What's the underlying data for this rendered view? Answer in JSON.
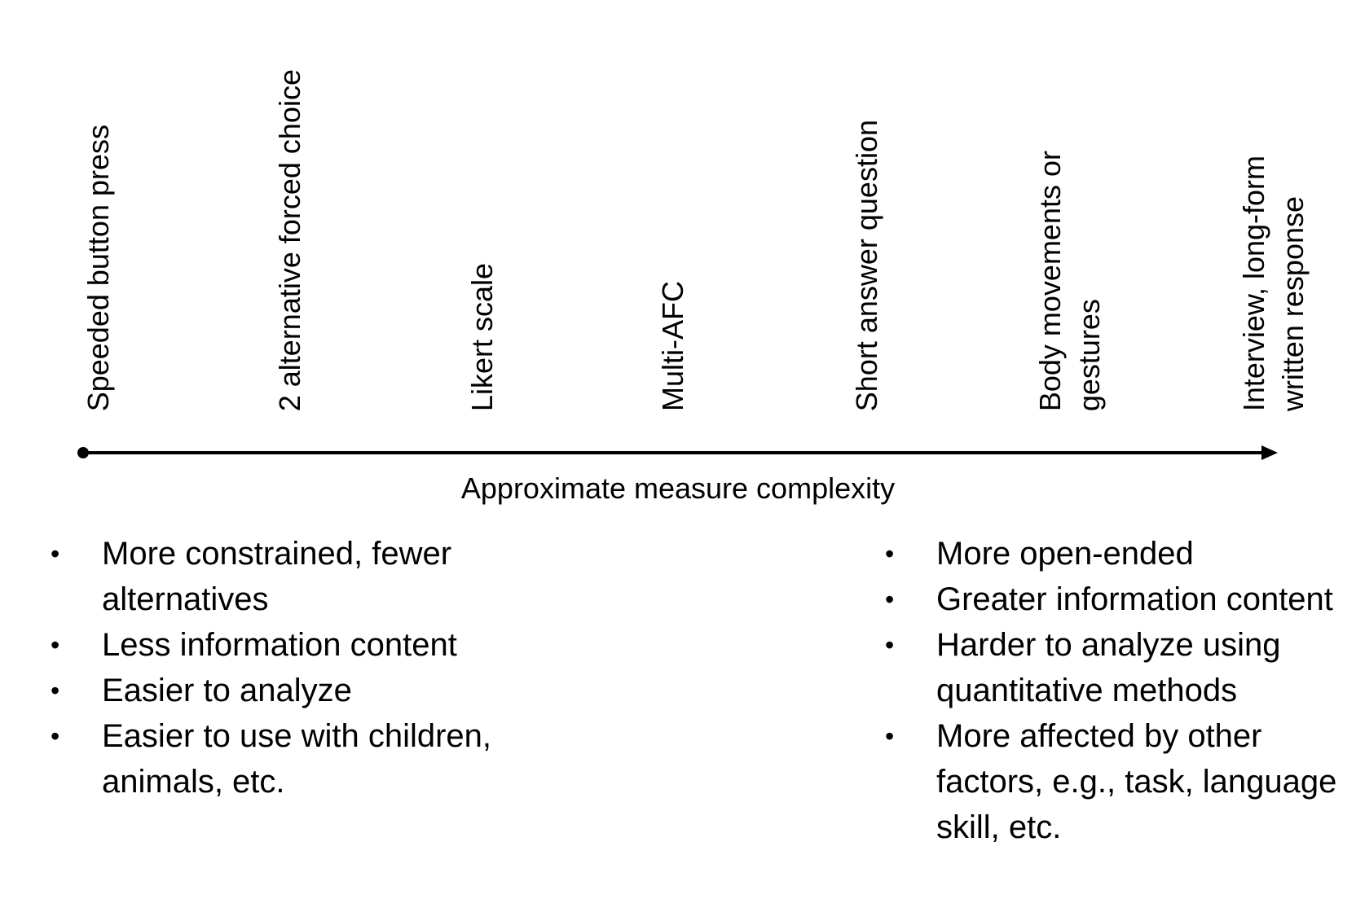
{
  "measures": [
    "Speeded button press",
    "2 alternative forced choice",
    "Likert scale",
    "Multi-AFC",
    "Short answer question",
    "Body movements or gestures",
    "Interview, long-form written response"
  ],
  "axis": {
    "label": "Approximate measure complexity",
    "direction": "left-to-right arrow"
  },
  "left_bullets": [
    "More constrained, fewer alternatives",
    "Less information content",
    "Easier to analyze",
    "Easier to use with children, animals, etc."
  ],
  "right_bullets": [
    "More open-ended",
    "Greater information content",
    "Harder to analyze using quantitative methods",
    "More affected by other factors, e.g., task, language skill, etc."
  ],
  "bullet_glyph": "•",
  "colors": {
    "foreground": "#000000",
    "background": "#ffffff"
  }
}
